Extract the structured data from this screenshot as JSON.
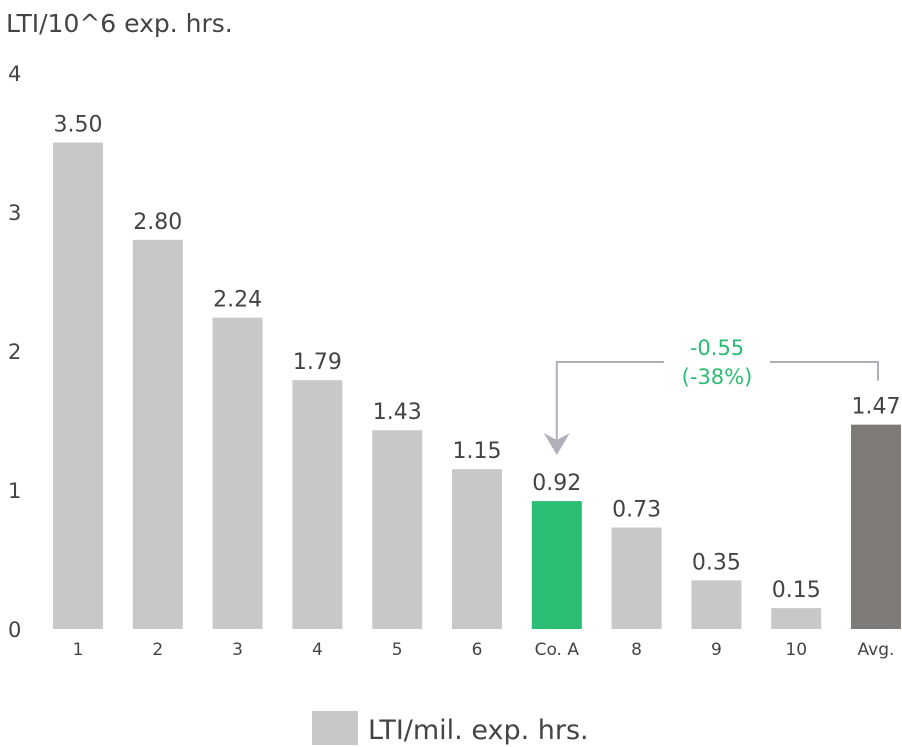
{
  "chart_data": {
    "type": "bar",
    "ylabel": "LTI/10^6 exp. hrs.",
    "yticks": [
      "0",
      "1",
      "2",
      "3",
      "4"
    ],
    "ylim": [
      0,
      4
    ],
    "grid": false,
    "categories": [
      "1",
      "2",
      "3",
      "4",
      "5",
      "6",
      "Co. A",
      "8",
      "9",
      "10",
      "Avg."
    ],
    "values": [
      3.5,
      2.8,
      2.24,
      1.79,
      1.43,
      1.15,
      0.92,
      0.73,
      0.35,
      0.15,
      1.47
    ],
    "value_labels": [
      "3.50",
      "2.80",
      "2.24",
      "1.79",
      "1.43",
      "1.15",
      "0.92",
      "0.73",
      "0.35",
      "0.15",
      "1.47"
    ],
    "bar_colors": [
      "#c8c8c8",
      "#c8c8c8",
      "#c8c8c8",
      "#c8c8c8",
      "#c8c8c8",
      "#c8c8c8",
      "#2bbd73",
      "#c8c8c8",
      "#c8c8c8",
      "#c8c8c8",
      "#7f7b78"
    ],
    "legend": {
      "position": "bottom",
      "label": "LTI/mil. exp. hrs.",
      "color": "#c8c8c8"
    },
    "annotation": {
      "from": "Avg.",
      "to": "Co. A",
      "text_line1": "-0.55",
      "text_line2": "(-38%)",
      "text_color": "#2bbd73",
      "line_color": "#b0b0b8"
    }
  }
}
